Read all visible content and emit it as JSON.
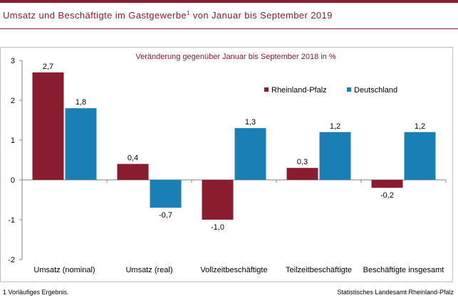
{
  "header": {
    "title": "Umsatz und Beschäftigte im Gastgewerbe",
    "title_sup": "1",
    "title_suffix": " von Januar bis September 2019"
  },
  "footer": {
    "footnote": "1 Vorläufiges Ergebnis.",
    "source": "Statistisches Landesamt Rheinland-Pfalz"
  },
  "chart_data": {
    "type": "bar",
    "subtitle": "Veränderung gegenüber Januar bis September 2018 in %",
    "categories": [
      "Umsatz (nominal)",
      "Umsatz (real)",
      "Vollzeitbeschäftigte",
      "Teilzeitbeschäftigte",
      "Beschäftigte insgesamt"
    ],
    "series": [
      {
        "name": "Rheinland-Pfalz",
        "values": [
          2.7,
          0.4,
          -1.0,
          0.3,
          -0.2
        ],
        "labels": [
          "2,7",
          "0,4",
          "-1,0",
          "0,3",
          "-0,2"
        ],
        "color": "#8a1c2f"
      },
      {
        "name": "Deutschland",
        "values": [
          1.8,
          -0.7,
          1.3,
          1.2,
          1.2
        ],
        "labels": [
          "1,8",
          "-0,7",
          "1,3",
          "1,2",
          "1,2"
        ],
        "color": "#1a7fb5"
      }
    ],
    "ylim": [
      -2,
      3
    ],
    "yticks": [
      3,
      2,
      1,
      0,
      -1,
      -2
    ],
    "ytick_labels": [
      "3",
      "2",
      "1",
      "0",
      "-1",
      "-2"
    ],
    "legend_position": "top-right",
    "grid": false
  }
}
